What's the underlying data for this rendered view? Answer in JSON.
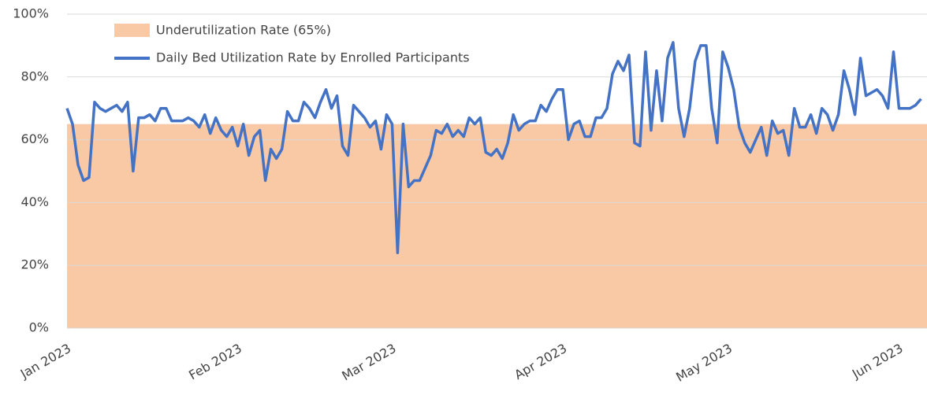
{
  "chart_data": {
    "type": "line",
    "categories": [
      "Jan 2023",
      null,
      null,
      null,
      null,
      null,
      null,
      null,
      null,
      null,
      null,
      null,
      null,
      null,
      null,
      null,
      null,
      null,
      null,
      null,
      null,
      null,
      null,
      null,
      null,
      null,
      null,
      null,
      null,
      null,
      null,
      "Feb 2023",
      null,
      null,
      null,
      null,
      null,
      null,
      null,
      null,
      null,
      null,
      null,
      null,
      null,
      null,
      null,
      null,
      null,
      null,
      null,
      null,
      null,
      null,
      null,
      null,
      null,
      null,
      null,
      "Mar 2023",
      null,
      null,
      null,
      null,
      null,
      null,
      null,
      null,
      null,
      null,
      null,
      null,
      null,
      null,
      null,
      null,
      null,
      null,
      null,
      null,
      null,
      null,
      null,
      null,
      null,
      null,
      null,
      null,
      null,
      null,
      "Apr 2023",
      null,
      null,
      null,
      null,
      null,
      null,
      null,
      null,
      null,
      null,
      null,
      null,
      null,
      null,
      null,
      null,
      null,
      null,
      null,
      null,
      null,
      null,
      null,
      null,
      null,
      null,
      null,
      null,
      null,
      "May 2023",
      null,
      null,
      null,
      null,
      null,
      null,
      null,
      null,
      null,
      null,
      null,
      null,
      null,
      null,
      null,
      null,
      null,
      null,
      null,
      null,
      null,
      null,
      null,
      null,
      null,
      null,
      null,
      null,
      null,
      null,
      "Jun 2023",
      null,
      null,
      null,
      null
    ],
    "threshold": {
      "name": "Underutilization Rate (65%)",
      "value": 65,
      "color": "#f9c9a6"
    },
    "series": [
      {
        "name": "Daily Bed Utilization Rate by Enrolled Participants",
        "color": "#4472c4",
        "values": [
          70,
          65,
          52,
          47,
          48,
          72,
          70,
          69,
          70,
          71,
          69,
          72,
          50,
          67,
          67,
          68,
          66,
          70,
          70,
          66,
          66,
          66,
          67,
          66,
          64,
          68,
          62,
          67,
          63,
          61,
          64,
          58,
          65,
          55,
          61,
          63,
          47,
          57,
          54,
          57,
          69,
          66,
          66,
          72,
          70,
          67,
          72,
          76,
          70,
          74,
          58,
          55,
          71,
          69,
          67,
          64,
          66,
          57,
          68,
          65,
          24,
          65,
          45,
          47,
          47,
          51,
          55,
          63,
          62,
          65,
          61,
          63,
          61,
          67,
          65,
          67,
          56,
          55,
          57,
          54,
          59,
          68,
          63,
          65,
          66,
          66,
          71,
          69,
          73,
          76,
          76,
          60,
          65,
          66,
          61,
          61,
          67,
          67,
          70,
          81,
          85,
          82,
          87,
          59,
          58,
          88,
          63,
          82,
          66,
          86,
          91,
          70,
          61,
          70,
          85,
          90,
          90,
          70,
          59,
          88,
          83,
          76,
          64,
          59,
          56,
          60,
          64,
          55,
          66,
          62,
          63,
          55,
          70,
          64,
          64,
          68,
          62,
          70,
          68,
          63,
          68,
          82,
          76,
          68,
          86,
          74,
          75,
          76,
          74,
          70,
          88,
          70,
          70,
          70,
          71,
          73
        ]
      }
    ],
    "ylim": [
      0,
      100
    ],
    "yticks": [
      {
        "value": 0,
        "label": "0%"
      },
      {
        "value": 20,
        "label": "20%"
      },
      {
        "value": 40,
        "label": "40%"
      },
      {
        "value": 60,
        "label": "60%"
      },
      {
        "value": 80,
        "label": "80%"
      },
      {
        "value": 100,
        "label": "100%"
      }
    ],
    "grid": true
  }
}
